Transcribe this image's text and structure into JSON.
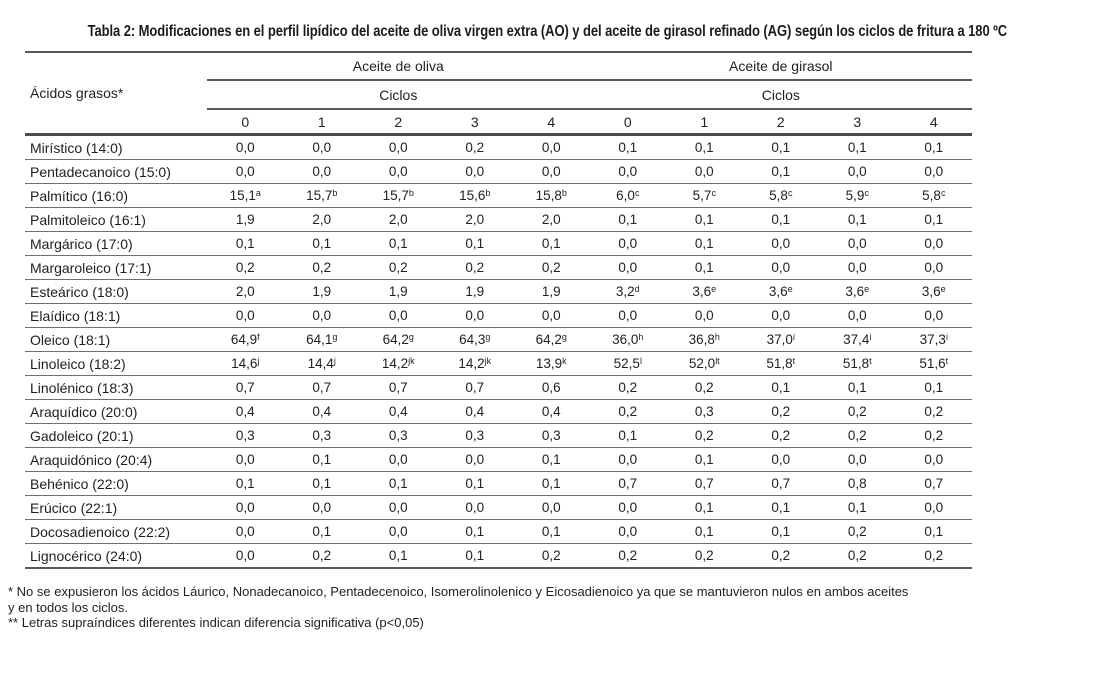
{
  "title": "Tabla 2: Modificaciones en el perfil lipídico del aceite de oliva virgen extra (AO) y del aceite de girasol refinado (AG) según los ciclos de fritura a 180 ºC",
  "table": {
    "row_header": "Ácidos grasos*",
    "groups": [
      {
        "label": "Aceite de oliva",
        "subheader": "Ciclos"
      },
      {
        "label": "Aceite de girasol",
        "subheader": "Ciclos"
      }
    ],
    "cycles": [
      "0",
      "1",
      "2",
      "3",
      "4"
    ],
    "rows": [
      {
        "label": "Mirístico (14:0)",
        "values": [
          "0,0",
          "0,0",
          "0,0",
          "0,2",
          "0,0",
          "0,1",
          "0,1",
          "0,1",
          "0,1",
          "0,1"
        ]
      },
      {
        "label": "Pentadecanoico (15:0)",
        "values": [
          "0,0",
          "0,0",
          "0,0",
          "0,0",
          "0,0",
          "0,0",
          "0,0",
          "0,1",
          "0,0",
          "0,0"
        ]
      },
      {
        "label": "Palmítico (16:0)",
        "values": [
          "15,1^a",
          "15,7^b",
          "15,7^b",
          "15,6^b",
          "15,8^b",
          "6,0^c",
          "5,7^c",
          "5,8^c",
          "5,9^c",
          "5,8^c"
        ]
      },
      {
        "label": "Palmitoleico (16:1)",
        "values": [
          "1,9",
          "2,0",
          "2,0",
          "2,0",
          "2,0",
          "0,1",
          "0,1",
          "0,1",
          "0,1",
          "0,1"
        ]
      },
      {
        "label": "Margárico (17:0)",
        "values": [
          "0,1",
          "0,1",
          "0,1",
          "0,1",
          "0,1",
          "0,0",
          "0,1",
          "0,0",
          "0,0",
          "0,0"
        ]
      },
      {
        "label": "Margaroleico (17:1)",
        "values": [
          "0,2",
          "0,2",
          "0,2",
          "0,2",
          "0,2",
          "0,0",
          "0,1",
          "0,0",
          "0,0",
          "0,0"
        ]
      },
      {
        "label": "Esteárico (18:0)",
        "values": [
          "2,0",
          "1,9",
          "1,9",
          "1,9",
          "1,9",
          "3,2^d",
          "3,6^e",
          "3,6^e",
          "3,6^e",
          "3,6^e"
        ]
      },
      {
        "label": "Elaídico (18:1)",
        "values": [
          "0,0",
          "0,0",
          "0,0",
          "0,0",
          "0,0",
          "0,0",
          "0,0",
          "0,0",
          "0,0",
          "0,0"
        ]
      },
      {
        "label": "Oleico (18:1)",
        "values": [
          "64,9^f",
          "64,1^g",
          "64,2^g",
          "64,3^g",
          "64,2^g",
          "36,0^h",
          "36,8^h",
          "37,0^i",
          "37,4^i",
          "37,3^i"
        ]
      },
      {
        "label": "Linoleico (18:2)",
        "values": [
          "14,6^j",
          "14,4^j",
          "14,2^jk",
          "14,2^jk",
          "13,9^k",
          "52,5^l",
          "52,0^lt",
          "51,8^t",
          "51,8^t",
          "51,6^t"
        ]
      },
      {
        "label": "Linolénico (18:3)",
        "values": [
          "0,7",
          "0,7",
          "0,7",
          "0,7",
          "0,6",
          "0,2",
          "0,2",
          "0,1",
          "0,1",
          "0,1"
        ]
      },
      {
        "label": "Araquídico (20:0)",
        "values": [
          "0,4",
          "0,4",
          "0,4",
          "0,4",
          "0,4",
          "0,2",
          "0,3",
          "0,2",
          "0,2",
          "0,2"
        ]
      },
      {
        "label": "Gadoleico (20:1)",
        "values": [
          "0,3",
          "0,3",
          "0,3",
          "0,3",
          "0,3",
          "0,1",
          "0,2",
          "0,2",
          "0,2",
          "0,2"
        ]
      },
      {
        "label": "Araquidónico (20:4)",
        "values": [
          "0,0",
          "0,1",
          "0,0",
          "0,0",
          "0,1",
          "0,0",
          "0,1",
          "0,0",
          "0,0",
          "0,0"
        ]
      },
      {
        "label": "Behénico (22:0)",
        "values": [
          "0,1",
          "0,1",
          "0,1",
          "0,1",
          "0,1",
          "0,7",
          "0,7",
          "0,7",
          "0,8",
          "0,7"
        ]
      },
      {
        "label": "Erúcico (22:1)",
        "values": [
          "0,0",
          "0,0",
          "0,0",
          "0,0",
          "0,0",
          "0,0",
          "0,1",
          "0,1",
          "0,1",
          "0,0"
        ]
      },
      {
        "label": "Docosadienoico (22:2)",
        "values": [
          "0,0",
          "0,1",
          "0,0",
          "0,1",
          "0,1",
          "0,0",
          "0,1",
          "0,1",
          "0,2",
          "0,1"
        ]
      },
      {
        "label": "Lignocérico (24:0)",
        "values": [
          "0,0",
          "0,2",
          "0,1",
          "0,1",
          "0,2",
          "0,2",
          "0,2",
          "0,2",
          "0,2",
          "0,2"
        ]
      }
    ]
  },
  "footnotes": [
    "* No se expusieron los ácidos Láurico, Nonadecanoico, Pentadecenoico, Isomerolinolenico y Eicosadienoico ya que se mantuvieron nulos en ambos aceites",
    "y en todos los ciclos.",
    "** Letras supraíndices diferentes indican diferencia significativa (p<0,05)"
  ]
}
